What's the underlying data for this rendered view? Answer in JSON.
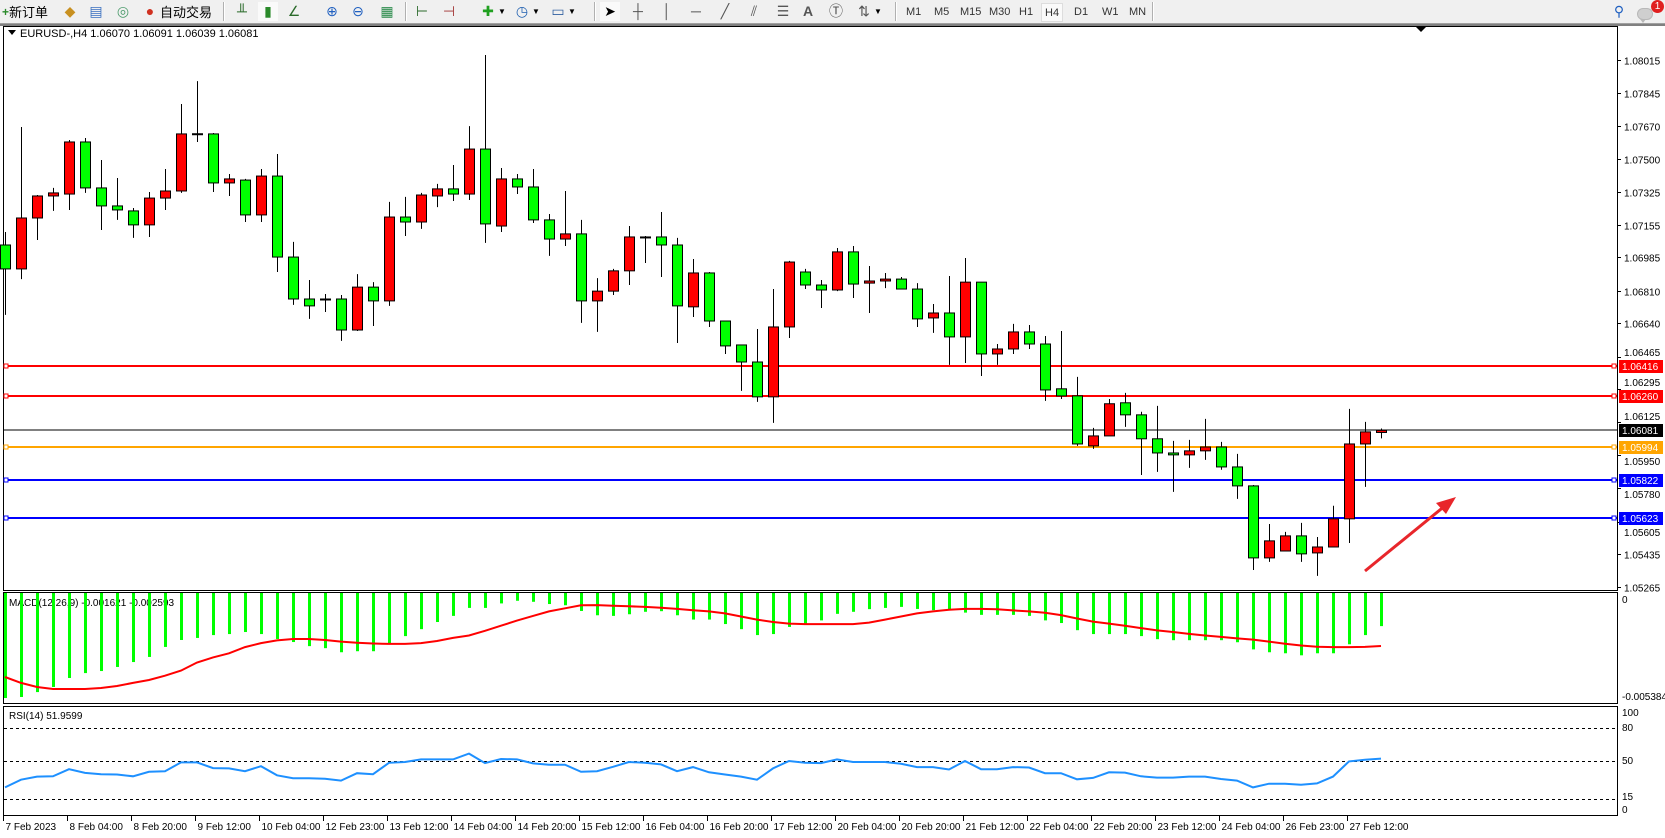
{
  "toolbar": {
    "new_order": "新订单",
    "auto_trading": "自动交易",
    "icons": [
      "new-order-icon",
      "market-watch-icon",
      "data-window-icon",
      "signals-icon",
      "auto-trading-icon",
      "bar-chart-icon",
      "candlestick-icon",
      "line-chart-icon",
      "zoom-in-icon",
      "zoom-out-icon",
      "tile-windows-icon",
      "chart-shift-icon",
      "autoscroll-icon",
      "indicators-icon",
      "periods-icon",
      "templates-icon",
      "cursor-icon",
      "crosshair-icon",
      "vertical-line-icon",
      "horizontal-line-icon",
      "trendline-icon",
      "equidistant-channel-icon",
      "fibonacci-icon",
      "text-icon",
      "text-label-icon",
      "arrows-icon",
      "search-icon",
      "notification-icon"
    ],
    "timeframes": [
      "M1",
      "M5",
      "M15",
      "M30",
      "H1",
      "H4",
      "D1",
      "W1",
      "MN"
    ],
    "active_timeframe": "H4",
    "notification_count": "1"
  },
  "chart": {
    "header": "EURUSD-,H4  1.06070 1.06091 1.06039 1.06081"
  },
  "chart_data": {
    "type": "candlestick",
    "symbol": "EURUSD-",
    "timeframe": "H4",
    "ohlc_order": [
      "open",
      "high",
      "low",
      "close"
    ],
    "candles": [
      [
        1.07049,
        1.07117,
        1.06684,
        1.06924
      ],
      [
        1.06924,
        1.07665,
        1.06871,
        1.0719
      ],
      [
        1.0719,
        1.0731,
        1.07075,
        1.07305
      ],
      [
        1.07305,
        1.07347,
        1.07227,
        1.07321
      ],
      [
        1.07315,
        1.07597,
        1.07232,
        1.07587
      ],
      [
        1.07587,
        1.07608,
        1.07321,
        1.07347
      ],
      [
        1.07347,
        1.07493,
        1.07127,
        1.07253
      ],
      [
        1.07253,
        1.07399,
        1.0718,
        1.07232
      ],
      [
        1.07227,
        1.07242,
        1.07086,
        1.07154
      ],
      [
        1.07154,
        1.07326,
        1.07091,
        1.07294
      ],
      [
        1.07294,
        1.07446,
        1.07232,
        1.07331
      ],
      [
        1.07331,
        1.07785,
        1.07321,
        1.07629
      ],
      [
        1.07629,
        1.07905,
        1.07587,
        1.0763
      ],
      [
        1.07629,
        1.07634,
        1.07326,
        1.07373
      ],
      [
        1.07373,
        1.0742,
        1.07305,
        1.07394
      ],
      [
        1.07388,
        1.07394,
        1.07169,
        1.07206
      ],
      [
        1.07206,
        1.07446,
        1.07169,
        1.07409
      ],
      [
        1.07409,
        1.07524,
        1.06908,
        1.06986
      ],
      [
        1.06986,
        1.07065,
        1.06736,
        1.06767
      ],
      [
        1.06767,
        1.06866,
        1.06663,
        1.06731
      ],
      [
        1.06767,
        1.06793,
        1.06699,
        1.06765
      ],
      [
        1.06767,
        1.06788,
        1.06548,
        1.06605
      ],
      [
        1.06605,
        1.06897,
        1.066,
        1.06829
      ],
      [
        1.06829,
        1.06855,
        1.06626,
        1.06757
      ],
      [
        1.06757,
        1.07274,
        1.06731,
        1.07195
      ],
      [
        1.07195,
        1.073,
        1.07096,
        1.07169
      ],
      [
        1.07169,
        1.07321,
        1.07133,
        1.0731
      ],
      [
        1.07305,
        1.07368,
        1.07247,
        1.07342
      ],
      [
        1.07342,
        1.07467,
        1.07279,
        1.07315
      ],
      [
        1.07315,
        1.0767,
        1.07284,
        1.0755
      ],
      [
        1.0755,
        1.08041,
        1.0706,
        1.07159
      ],
      [
        1.07148,
        1.07451,
        1.07117,
        1.07394
      ],
      [
        1.07394,
        1.0742,
        1.07315,
        1.07352
      ],
      [
        1.07352,
        1.07446,
        1.07164,
        1.0718
      ],
      [
        1.0718,
        1.07211,
        1.06992,
        1.0708
      ],
      [
        1.0708,
        1.07331,
        1.07044,
        1.07107
      ],
      [
        1.07107,
        1.0718,
        1.06642,
        1.06757
      ],
      [
        1.06757,
        1.06876,
        1.06595,
        1.06808
      ],
      [
        1.06808,
        1.06924,
        1.06788,
        1.06914
      ],
      [
        1.06914,
        1.07148,
        1.0684,
        1.07091
      ],
      [
        1.07091,
        1.07096,
        1.06955,
        1.07089
      ],
      [
        1.07091,
        1.07221,
        1.06882,
        1.07049
      ],
      [
        1.07049,
        1.07086,
        1.06537,
        1.06731
      ],
      [
        1.06726,
        1.06976,
        1.06673,
        1.06903
      ],
      [
        1.06903,
        1.06908,
        1.06621,
        1.06652
      ],
      [
        1.06652,
        1.06652,
        1.0648,
        1.06522
      ],
      [
        1.06527,
        1.06527,
        1.06287,
        1.06438
      ],
      [
        1.06438,
        1.0661,
        1.0623,
        1.06256
      ],
      [
        1.06256,
        1.06819,
        1.0612,
        1.06621
      ],
      [
        1.06621,
        1.06966,
        1.06563,
        1.0696
      ],
      [
        1.06908,
        1.06924,
        1.06819,
        1.0684
      ],
      [
        1.0684,
        1.06866,
        1.0672,
        1.06814
      ],
      [
        1.06814,
        1.07033,
        1.06808,
        1.07013
      ],
      [
        1.07013,
        1.07044,
        1.06772,
        1.06845
      ],
      [
        1.0685,
        1.06939,
        1.06694,
        1.06861
      ],
      [
        1.06861,
        1.06903,
        1.06824,
        1.06871
      ],
      [
        1.06871,
        1.06882,
        1.06819,
        1.06819
      ],
      [
        1.06819,
        1.0685,
        1.06621,
        1.06663
      ],
      [
        1.06668,
        1.06741,
        1.0659,
        1.06694
      ],
      [
        1.06694,
        1.06887,
        1.06423,
        1.06569
      ],
      [
        1.06569,
        1.06981,
        1.06433,
        1.06855
      ],
      [
        1.06855,
        1.06855,
        1.06365,
        1.0648
      ],
      [
        1.0648,
        1.06532,
        1.06423,
        1.06506
      ],
      [
        1.06506,
        1.06637,
        1.0648,
        1.06595
      ],
      [
        1.06595,
        1.06631,
        1.06506,
        1.06532
      ],
      [
        1.06532,
        1.06574,
        1.06235,
        1.06292
      ],
      [
        1.06298,
        1.066,
        1.06245,
        1.06261
      ],
      [
        1.06261,
        1.0636,
        1.06,
        1.0601
      ],
      [
        1.06,
        1.06094,
        1.05984,
        1.06052
      ],
      [
        1.06052,
        1.06245,
        1.06052,
        1.0622
      ],
      [
        1.06225,
        1.06277,
        1.06099,
        1.06162
      ],
      [
        1.06162,
        1.06178,
        1.05848,
        1.06037
      ],
      [
        1.06037,
        1.06209,
        1.05864,
        1.05963
      ],
      [
        1.05963,
        1.06026,
        1.0576,
        1.05953
      ],
      [
        1.05953,
        1.06031,
        1.05885,
        1.05974
      ],
      [
        1.05974,
        1.06141,
        1.05927,
        1.05994
      ],
      [
        1.05994,
        1.06021,
        1.05875,
        1.0589
      ],
      [
        1.0589,
        1.05958,
        1.05723,
        1.05791
      ],
      [
        1.05791,
        1.05796,
        1.05352,
        1.05415
      ],
      [
        1.05415,
        1.05592,
        1.05394,
        1.05504
      ],
      [
        1.05451,
        1.05551,
        1.05451,
        1.0553
      ],
      [
        1.0553,
        1.05598,
        1.05394,
        1.05436
      ],
      [
        1.05441,
        1.05524,
        1.05321,
        1.05472
      ],
      [
        1.05472,
        1.05687,
        1.05472,
        1.05619
      ],
      [
        1.05619,
        1.06193,
        1.05493,
        1.0601
      ],
      [
        1.0601,
        1.06125,
        1.05786,
        1.06073
      ],
      [
        1.0607,
        1.06091,
        1.06039,
        1.06081
      ]
    ],
    "bullish_color": "#ff0000",
    "bearish_color": "#00ff00",
    "x_tick_labels": [
      "7 Feb 2023",
      "8 Feb 04:00",
      "8 Feb 20:00",
      "9 Feb 12:00",
      "10 Feb 04:00",
      "12 Feb 23:00",
      "13 Feb 12:00",
      "14 Feb 04:00",
      "14 Feb 20:00",
      "15 Feb 12:00",
      "16 Feb 04:00",
      "16 Feb 20:00",
      "17 Feb 12:00",
      "20 Feb 04:00",
      "20 Feb 20:00",
      "21 Feb 12:00",
      "22 Feb 04:00",
      "22 Feb 20:00",
      "23 Feb 12:00",
      "24 Feb 04:00",
      "26 Feb 23:00",
      "27 Feb 12:00"
    ],
    "x_tick_every_n_candles": 4,
    "y_tick_labels": [
      "1.08015",
      "1.07845",
      "1.07670",
      "1.07500",
      "1.07325",
      "1.07155",
      "1.06985",
      "1.06810",
      "1.06640",
      "1.06465",
      "1.06295",
      "1.06125",
      "1.05950",
      "1.05780",
      "1.05605",
      "1.05435",
      "1.05265"
    ],
    "ylim": [
      1.05247,
      1.0819
    ],
    "horizontal_lines": [
      {
        "price": 1.06416,
        "label": "1.06416",
        "color": "#ff0000"
      },
      {
        "price": 1.0626,
        "label": "1.06260",
        "color": "#ff0000"
      },
      {
        "price": 1.05994,
        "label": "1.05994",
        "color": "#ffa500"
      },
      {
        "price": 1.05822,
        "label": "1.05822",
        "color": "#0000ff"
      },
      {
        "price": 1.05623,
        "label": "1.05623",
        "color": "#0000ff"
      }
    ],
    "bid_line": {
      "price": 1.06081,
      "label": "1.06081",
      "color": "#000000"
    },
    "annotation_arrow": {
      "color": "#e8262b",
      "direction": "up-right"
    },
    "macd": {
      "label": "MACD(12,26,9) -0.001621 -0.002593",
      "ylim": [
        -0.005384,
        0
      ],
      "y_tick_labels": [
        "0",
        "-0.005384"
      ],
      "histogram_color": "#00ff00",
      "signal_color": "#ff0000",
      "histogram": [
        -0.00514,
        -0.00509,
        -0.00485,
        -0.0046,
        -0.00416,
        -0.00392,
        -0.00382,
        -0.00362,
        -0.00338,
        -0.00313,
        -0.00264,
        -0.0023,
        -0.0022,
        -0.00206,
        -0.00201,
        -0.00191,
        -0.00201,
        -0.00225,
        -0.0024,
        -0.0026,
        -0.0027,
        -0.0029,
        -0.00285,
        -0.00285,
        -0.00249,
        -0.00211,
        -0.00177,
        -0.00142,
        -0.00112,
        -0.00073,
        -0.00073,
        -0.00051,
        -0.00038,
        -0.00043,
        -0.00054,
        -0.0006,
        -0.00088,
        -0.00109,
        -0.00112,
        -0.00104,
        -0.00092,
        -0.00089,
        -0.00109,
        -0.0013,
        -0.0013,
        -0.00152,
        -0.00177,
        -0.00206,
        -0.00201,
        -0.00166,
        -0.00155,
        -0.00134,
        -0.00102,
        -0.00092,
        -0.00079,
        -0.00073,
        -0.00068,
        -0.00078,
        -0.00084,
        -0.00084,
        -0.00096,
        -0.00107,
        -0.00107,
        -0.00107,
        -0.00112,
        -0.00134,
        -0.00147,
        -0.00182,
        -0.00201,
        -0.00201,
        -0.00201,
        -0.00211,
        -0.00226,
        -0.00231,
        -0.00231,
        -0.00231,
        -0.00231,
        -0.00241,
        -0.00276,
        -0.0029,
        -0.00295,
        -0.00305,
        -0.00295,
        -0.00295,
        -0.00251,
        -0.00206,
        -0.001621
      ],
      "signal": [
        -0.00411,
        -0.0044,
        -0.0046,
        -0.0047,
        -0.0047,
        -0.0047,
        -0.00465,
        -0.00455,
        -0.0044,
        -0.00426,
        -0.00405,
        -0.0038,
        -0.0034,
        -0.00315,
        -0.00295,
        -0.00265,
        -0.00245,
        -0.00232,
        -0.00225,
        -0.00225,
        -0.0023,
        -0.00238,
        -0.00244,
        -0.00247,
        -0.00249,
        -0.00249,
        -0.00245,
        -0.00235,
        -0.0022,
        -0.00208,
        -0.00185,
        -0.0016,
        -0.00135,
        -0.00112,
        -0.0009,
        -0.00075,
        -0.0006,
        -0.00059,
        -0.00062,
        -0.00065,
        -0.00068,
        -0.00072,
        -0.00078,
        -0.00084,
        -0.0009,
        -0.001,
        -0.00115,
        -0.0013,
        -0.00142,
        -0.0015,
        -0.00152,
        -0.00152,
        -0.00152,
        -0.00152,
        -0.00145,
        -0.0013,
        -0.00115,
        -0.001,
        -0.0009,
        -0.00082,
        -0.00078,
        -0.00078,
        -0.0008,
        -0.00085,
        -0.0009,
        -0.00097,
        -0.00108,
        -0.00125,
        -0.0014,
        -0.0015,
        -0.0016,
        -0.00172,
        -0.00183,
        -0.00191,
        -0.002,
        -0.00208,
        -0.00215,
        -0.00222,
        -0.00228,
        -0.00238,
        -0.00248,
        -0.00257,
        -0.00263,
        -0.00265,
        -0.00265,
        -0.00264,
        -0.002593
      ]
    },
    "rsi": {
      "label": "RSI(14) 51.9599",
      "ylim": [
        0,
        100
      ],
      "levels": [
        80,
        50,
        15
      ],
      "y_tick_labels": [
        "100",
        "80",
        "50",
        "15",
        "0"
      ],
      "color": "#1e90ff",
      "values": [
        25.5,
        32.6,
        35.4,
        35.7,
        42.2,
        38.8,
        37.6,
        37.3,
        35.7,
        39.8,
        40.4,
        48.4,
        48.4,
        43.2,
        42.9,
        40.4,
        45.0,
        36.6,
        33.9,
        33.9,
        33.5,
        31.7,
        38.5,
        37.6,
        48.1,
        48.8,
        51.2,
        51.2,
        51.2,
        56.5,
        47.8,
        51.6,
        51.2,
        47.5,
        46.3,
        46.3,
        39.8,
        40.4,
        44.4,
        48.8,
        48.1,
        46.6,
        40.4,
        44.1,
        39.4,
        37.3,
        35.4,
        32.6,
        42.9,
        49.7,
        48.1,
        47.8,
        51.2,
        48.8,
        48.8,
        48.8,
        47.2,
        44.1,
        44.1,
        41.9,
        49.7,
        42.2,
        42.2,
        44.1,
        43.8,
        38.5,
        38.5,
        32.9,
        34.2,
        39.4,
        39.1,
        35.7,
        34.5,
        34.5,
        35.4,
        35.4,
        33.2,
        31.7,
        25.5,
        28.9,
        28.9,
        28.0,
        29.2,
        35.4,
        49.4,
        50.9,
        51.96
      ]
    }
  }
}
